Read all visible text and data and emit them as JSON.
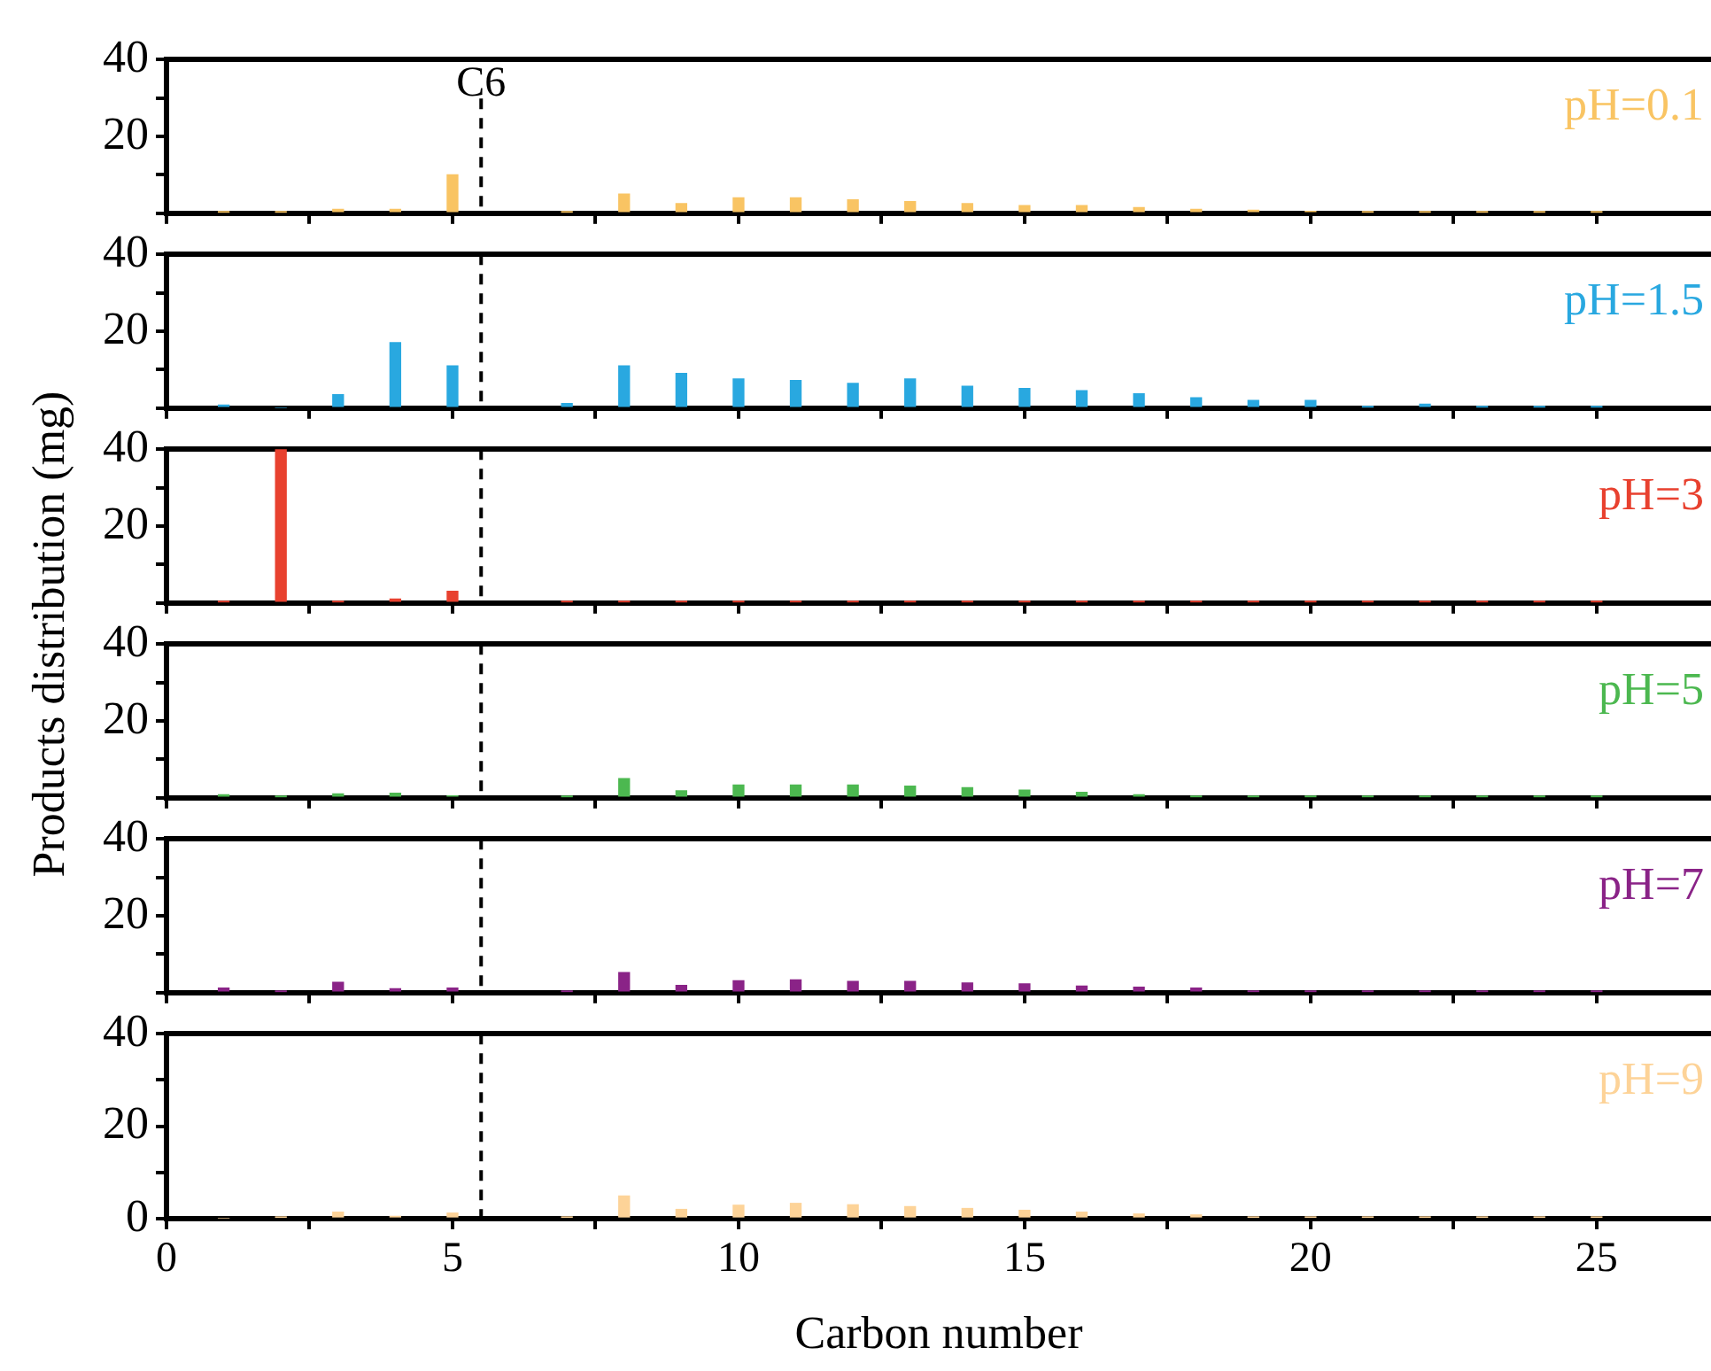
{
  "chart_data": [
    {
      "type": "bar",
      "ylabel": "Products distribution (mg)",
      "x": [
        1,
        2,
        3,
        4,
        5,
        7,
        8,
        9,
        10,
        11,
        12,
        13,
        14,
        15,
        16,
        17,
        18,
        19,
        20,
        21,
        22,
        23,
        24,
        25
      ],
      "series": [
        {
          "name": "pH=0.1",
          "color": "#f9c463",
          "values": [
            0.3,
            0.3,
            1,
            1,
            10,
            0.3,
            5,
            2.5,
            4,
            4,
            3.5,
            3,
            2.5,
            2,
            2,
            1.5,
            1,
            0.8,
            0.5,
            0.3,
            0.3,
            0.3,
            0.3,
            0.3
          ]
        }
      ],
      "xlim": [
        0,
        27
      ],
      "xticks": [
        0,
        {
          "value": 2.5,
          "label": null
        },
        5,
        {
          "value": 7.5,
          "label": null
        },
        10,
        {
          "value": 12.5,
          "label": null
        },
        15,
        {
          "value": 17.5,
          "label": null
        },
        20,
        {
          "value": 22.5,
          "label": null
        },
        25
      ],
      "ylim": [
        0,
        40
      ],
      "yticks": [
        {
          "value": 0,
          "label": null
        },
        {
          "value": 10,
          "label": null
        },
        20,
        {
          "value": 30,
          "label": null
        },
        40
      ],
      "ref_lines": [
        {
          "axis": "x",
          "value": 5.5,
          "label": "C6",
          "color": "#000000",
          "line_style": "dashed"
        }
      ],
      "tick_labels": "y"
    },
    {
      "type": "bar",
      "x": [
        1,
        2,
        3,
        4,
        5,
        7,
        8,
        9,
        10,
        11,
        12,
        13,
        14,
        15,
        16,
        17,
        18,
        19,
        20,
        21,
        22,
        23,
        24,
        25
      ],
      "series": [
        {
          "name": "pH=1.5",
          "color": "#29a8e0",
          "values": [
            0.8,
            0,
            3.5,
            17,
            11,
            1.2,
            11,
            9,
            7.6,
            7.2,
            6.4,
            7.6,
            5.7,
            5.1,
            4.5,
            3.7,
            2.7,
            2,
            2,
            0.3,
            1,
            0.3,
            0.3,
            0.3
          ]
        }
      ],
      "xlim": [
        0,
        27
      ],
      "xticks": [
        0,
        {
          "value": 2.5,
          "label": null
        },
        5,
        {
          "value": 7.5,
          "label": null
        },
        10,
        {
          "value": 12.5,
          "label": null
        },
        15,
        {
          "value": 17.5,
          "label": null
        },
        20,
        {
          "value": 22.5,
          "label": null
        },
        25
      ],
      "ylim": [
        0,
        40
      ],
      "yticks": [
        {
          "value": 0,
          "label": null
        },
        {
          "value": 10,
          "label": null
        },
        20,
        {
          "value": 30,
          "label": null
        },
        40
      ],
      "ref_lines": [
        {
          "axis": "x",
          "value": 5.5,
          "label": null,
          "color": "#000000",
          "line_style": "dashed"
        }
      ],
      "tick_labels": "y"
    },
    {
      "type": "bar",
      "x": [
        1,
        2,
        3,
        4,
        5,
        7,
        8,
        9,
        10,
        11,
        12,
        13,
        14,
        15,
        16,
        17,
        18,
        19,
        20,
        21,
        22,
        23,
        24,
        25
      ],
      "series": [
        {
          "name": "pH=3",
          "color": "#e8412f",
          "values": [
            0.3,
            40,
            0.3,
            1,
            3,
            0.3,
            0.3,
            0.3,
            0.3,
            0.3,
            0.3,
            0.3,
            0.3,
            0.3,
            0.3,
            0.3,
            0.3,
            0.3,
            0.3,
            0.3,
            0.3,
            0.3,
            0.3,
            0.3
          ]
        }
      ],
      "xlim": [
        0,
        27
      ],
      "xticks": [
        0,
        {
          "value": 2.5,
          "label": null
        },
        5,
        {
          "value": 7.5,
          "label": null
        },
        10,
        {
          "value": 12.5,
          "label": null
        },
        15,
        {
          "value": 17.5,
          "label": null
        },
        20,
        {
          "value": 22.5,
          "label": null
        },
        25
      ],
      "ylim": [
        0,
        40
      ],
      "yticks": [
        {
          "value": 0,
          "label": null
        },
        {
          "value": 10,
          "label": null
        },
        20,
        {
          "value": 30,
          "label": null
        },
        40
      ],
      "ref_lines": [
        {
          "axis": "x",
          "value": 5.5,
          "label": null,
          "color": "#000000",
          "line_style": "dashed"
        }
      ],
      "tick_labels": "y"
    },
    {
      "type": "bar",
      "x": [
        1,
        2,
        3,
        4,
        5,
        7,
        8,
        9,
        10,
        11,
        12,
        13,
        14,
        15,
        16,
        17,
        18,
        19,
        20,
        21,
        22,
        23,
        24,
        25
      ],
      "series": [
        {
          "name": "pH=5",
          "color": "#4cb850",
          "values": [
            0.8,
            0.3,
            1,
            1.2,
            0.5,
            0.3,
            5,
            1.8,
            3.3,
            3.3,
            3.3,
            3,
            2.6,
            2,
            1.4,
            0.8,
            0.3,
            0.3,
            0.3,
            0.3,
            0.3,
            0.3,
            0.3,
            0.3
          ]
        }
      ],
      "xlim": [
        0,
        27
      ],
      "xticks": [
        0,
        {
          "value": 2.5,
          "label": null
        },
        5,
        {
          "value": 7.5,
          "label": null
        },
        10,
        {
          "value": 12.5,
          "label": null
        },
        15,
        {
          "value": 17.5,
          "label": null
        },
        20,
        {
          "value": 22.5,
          "label": null
        },
        25
      ],
      "ylim": [
        0,
        40
      ],
      "yticks": [
        {
          "value": 0,
          "label": null
        },
        {
          "value": 10,
          "label": null
        },
        20,
        {
          "value": 30,
          "label": null
        },
        40
      ],
      "ref_lines": [
        {
          "axis": "x",
          "value": 5.5,
          "label": null,
          "color": "#000000",
          "line_style": "dashed"
        }
      ],
      "tick_labels": "y"
    },
    {
      "type": "bar",
      "x": [
        1,
        2,
        3,
        4,
        5,
        7,
        8,
        9,
        10,
        11,
        12,
        13,
        14,
        15,
        16,
        17,
        18,
        19,
        20,
        21,
        22,
        23,
        24,
        25
      ],
      "series": [
        {
          "name": "pH=7",
          "color": "#8a2387",
          "values": [
            1.2,
            0.3,
            2.7,
            1,
            1.2,
            0.3,
            5.2,
            1.9,
            3.1,
            3.3,
            2.9,
            2.9,
            2.5,
            2.3,
            1.7,
            1.4,
            1.2,
            0.3,
            0.3,
            0.3,
            0.3,
            0.3,
            0.3,
            0.3
          ]
        }
      ],
      "xlim": [
        0,
        27
      ],
      "xticks": [
        0,
        {
          "value": 2.5,
          "label": null
        },
        5,
        {
          "value": 7.5,
          "label": null
        },
        10,
        {
          "value": 12.5,
          "label": null
        },
        15,
        {
          "value": 17.5,
          "label": null
        },
        20,
        {
          "value": 22.5,
          "label": null
        },
        25
      ],
      "ylim": [
        0,
        40
      ],
      "yticks": [
        {
          "value": 0,
          "label": null
        },
        {
          "value": 10,
          "label": null
        },
        20,
        {
          "value": 30,
          "label": null
        },
        40
      ],
      "ref_lines": [
        {
          "axis": "x",
          "value": 5.5,
          "label": null,
          "color": "#000000",
          "line_style": "dashed"
        }
      ],
      "tick_labels": "y"
    },
    {
      "type": "bar",
      "xlabel": "Carbon number",
      "x": [
        1,
        2,
        3,
        4,
        5,
        7,
        8,
        9,
        10,
        11,
        12,
        13,
        14,
        15,
        16,
        17,
        18,
        19,
        20,
        21,
        22,
        23,
        24,
        25
      ],
      "series": [
        {
          "name": "pH=9",
          "color": "#fdd398",
          "values": [
            0,
            0.3,
            1.4,
            0.5,
            1.2,
            0.3,
            4.9,
            2,
            2.9,
            3.3,
            3,
            2.6,
            2.2,
            1.8,
            1.4,
            1,
            0.8,
            0.3,
            0.3,
            0.3,
            0.3,
            0.3,
            0.3,
            0.3
          ]
        }
      ],
      "xlim": [
        0,
        27
      ],
      "xticks": [
        0,
        {
          "value": 2.5,
          "label": null
        },
        5,
        {
          "value": 7.5,
          "label": null
        },
        10,
        {
          "value": 12.5,
          "label": null
        },
        15,
        {
          "value": 17.5,
          "label": null
        },
        20,
        {
          "value": 22.5,
          "label": null
        },
        25
      ],
      "ylim": [
        0,
        40
      ],
      "yticks": [
        0,
        {
          "value": 10,
          "label": null
        },
        20,
        {
          "value": 30,
          "label": null
        },
        40
      ],
      "ref_lines": [
        {
          "axis": "x",
          "value": 5.5,
          "label": null,
          "color": "#000000",
          "line_style": "dashed"
        }
      ]
    }
  ]
}
